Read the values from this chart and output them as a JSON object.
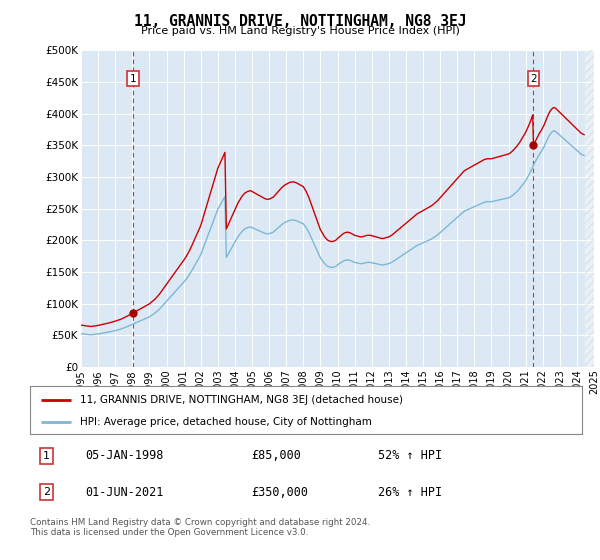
{
  "title": "11, GRANNIS DRIVE, NOTTINGHAM, NG8 3EJ",
  "subtitle": "Price paid vs. HM Land Registry's House Price Index (HPI)",
  "background_color": "#dce9f5",
  "plot_bg_color": "#dce9f5",
  "red_line_label": "11, GRANNIS DRIVE, NOTTINGHAM, NG8 3EJ (detached house)",
  "blue_line_label": "HPI: Average price, detached house, City of Nottingham",
  "footer": "Contains HM Land Registry data © Crown copyright and database right 2024.\nThis data is licensed under the Open Government Licence v3.0.",
  "annotation1_date": "05-JAN-1998",
  "annotation1_price": "£85,000",
  "annotation1_change": "52% ↑ HPI",
  "annotation2_date": "01-JUN-2021",
  "annotation2_price": "£350,000",
  "annotation2_change": "26% ↑ HPI",
  "ylim": [
    0,
    500000
  ],
  "ytick_labels": [
    "£0",
    "£50K",
    "£100K",
    "£150K",
    "£200K",
    "£250K",
    "£300K",
    "£350K",
    "£400K",
    "£450K",
    "£500K"
  ],
  "purchase1_date": 1998.04,
  "purchase1_price": 85000,
  "purchase2_date": 2021.46,
  "purchase2_price": 350000,
  "vline1_x": 1998.04,
  "vline2_x": 2021.46,
  "xmin": 1995,
  "xmax": 2025,
  "hpi_monthly": {
    "dates": [
      1995.0,
      1995.083,
      1995.167,
      1995.25,
      1995.333,
      1995.417,
      1995.5,
      1995.583,
      1995.667,
      1995.75,
      1995.833,
      1995.917,
      1996.0,
      1996.083,
      1996.167,
      1996.25,
      1996.333,
      1996.417,
      1996.5,
      1996.583,
      1996.667,
      1996.75,
      1996.833,
      1996.917,
      1997.0,
      1997.083,
      1997.167,
      1997.25,
      1997.333,
      1997.417,
      1997.5,
      1997.583,
      1997.667,
      1997.75,
      1997.833,
      1997.917,
      1998.0,
      1998.083,
      1998.167,
      1998.25,
      1998.333,
      1998.417,
      1998.5,
      1998.583,
      1998.667,
      1998.75,
      1998.833,
      1998.917,
      1999.0,
      1999.083,
      1999.167,
      1999.25,
      1999.333,
      1999.417,
      1999.5,
      1999.583,
      1999.667,
      1999.75,
      1999.833,
      1999.917,
      2000.0,
      2000.083,
      2000.167,
      2000.25,
      2000.333,
      2000.417,
      2000.5,
      2000.583,
      2000.667,
      2000.75,
      2000.833,
      2000.917,
      2001.0,
      2001.083,
      2001.167,
      2001.25,
      2001.333,
      2001.417,
      2001.5,
      2001.583,
      2001.667,
      2001.75,
      2001.833,
      2001.917,
      2002.0,
      2002.083,
      2002.167,
      2002.25,
      2002.333,
      2002.417,
      2002.5,
      2002.583,
      2002.667,
      2002.75,
      2002.833,
      2002.917,
      2003.0,
      2003.083,
      2003.167,
      2003.25,
      2003.333,
      2003.417,
      2003.5,
      2003.583,
      2003.667,
      2003.75,
      2003.833,
      2003.917,
      2004.0,
      2004.083,
      2004.167,
      2004.25,
      2004.333,
      2004.417,
      2004.5,
      2004.583,
      2004.667,
      2004.75,
      2004.833,
      2004.917,
      2005.0,
      2005.083,
      2005.167,
      2005.25,
      2005.333,
      2005.417,
      2005.5,
      2005.583,
      2005.667,
      2005.75,
      2005.833,
      2005.917,
      2006.0,
      2006.083,
      2006.167,
      2006.25,
      2006.333,
      2006.417,
      2006.5,
      2006.583,
      2006.667,
      2006.75,
      2006.833,
      2006.917,
      2007.0,
      2007.083,
      2007.167,
      2007.25,
      2007.333,
      2007.417,
      2007.5,
      2007.583,
      2007.667,
      2007.75,
      2007.833,
      2007.917,
      2008.0,
      2008.083,
      2008.167,
      2008.25,
      2008.333,
      2008.417,
      2008.5,
      2008.583,
      2008.667,
      2008.75,
      2008.833,
      2008.917,
      2009.0,
      2009.083,
      2009.167,
      2009.25,
      2009.333,
      2009.417,
      2009.5,
      2009.583,
      2009.667,
      2009.75,
      2009.833,
      2009.917,
      2010.0,
      2010.083,
      2010.167,
      2010.25,
      2010.333,
      2010.417,
      2010.5,
      2010.583,
      2010.667,
      2010.75,
      2010.833,
      2010.917,
      2011.0,
      2011.083,
      2011.167,
      2011.25,
      2011.333,
      2011.417,
      2011.5,
      2011.583,
      2011.667,
      2011.75,
      2011.833,
      2011.917,
      2012.0,
      2012.083,
      2012.167,
      2012.25,
      2012.333,
      2012.417,
      2012.5,
      2012.583,
      2012.667,
      2012.75,
      2012.833,
      2012.917,
      2013.0,
      2013.083,
      2013.167,
      2013.25,
      2013.333,
      2013.417,
      2013.5,
      2013.583,
      2013.667,
      2013.75,
      2013.833,
      2013.917,
      2014.0,
      2014.083,
      2014.167,
      2014.25,
      2014.333,
      2014.417,
      2014.5,
      2014.583,
      2014.667,
      2014.75,
      2014.833,
      2014.917,
      2015.0,
      2015.083,
      2015.167,
      2015.25,
      2015.333,
      2015.417,
      2015.5,
      2015.583,
      2015.667,
      2015.75,
      2015.833,
      2015.917,
      2016.0,
      2016.083,
      2016.167,
      2016.25,
      2016.333,
      2016.417,
      2016.5,
      2016.583,
      2016.667,
      2016.75,
      2016.833,
      2016.917,
      2017.0,
      2017.083,
      2017.167,
      2017.25,
      2017.333,
      2017.417,
      2017.5,
      2017.583,
      2017.667,
      2017.75,
      2017.833,
      2017.917,
      2018.0,
      2018.083,
      2018.167,
      2018.25,
      2018.333,
      2018.417,
      2018.5,
      2018.583,
      2018.667,
      2018.75,
      2018.833,
      2018.917,
      2019.0,
      2019.083,
      2019.167,
      2019.25,
      2019.333,
      2019.417,
      2019.5,
      2019.583,
      2019.667,
      2019.75,
      2019.833,
      2019.917,
      2020.0,
      2020.083,
      2020.167,
      2020.25,
      2020.333,
      2020.417,
      2020.5,
      2020.583,
      2020.667,
      2020.75,
      2020.833,
      2020.917,
      2021.0,
      2021.083,
      2021.167,
      2021.25,
      2021.333,
      2021.417,
      2021.5,
      2021.583,
      2021.667,
      2021.75,
      2021.833,
      2021.917,
      2022.0,
      2022.083,
      2022.167,
      2022.25,
      2022.333,
      2022.417,
      2022.5,
      2022.583,
      2022.667,
      2022.75,
      2022.833,
      2022.917,
      2023.0,
      2023.083,
      2023.167,
      2023.25,
      2023.333,
      2023.417,
      2023.5,
      2023.583,
      2023.667,
      2023.75,
      2023.833,
      2023.917,
      2024.0,
      2024.083,
      2024.167,
      2024.25,
      2024.333,
      2024.417
    ],
    "values": [
      52000,
      52200,
      51800,
      51500,
      51200,
      51000,
      50800,
      50600,
      50800,
      51000,
      51300,
      51600,
      52000,
      52300,
      52700,
      53000,
      53400,
      53800,
      54200,
      54700,
      55200,
      55700,
      56200,
      56700,
      57200,
      57800,
      58400,
      59000,
      59700,
      60500,
      61300,
      62200,
      63100,
      64000,
      65000,
      66000,
      67000,
      68000,
      69000,
      70000,
      71000,
      72000,
      73000,
      74000,
      75000,
      76000,
      77000,
      78000,
      79000,
      80500,
      82000,
      83500,
      85000,
      87000,
      89000,
      91000,
      93500,
      96000,
      98500,
      101000,
      103500,
      106000,
      108500,
      111000,
      113500,
      116000,
      118500,
      121000,
      123500,
      126000,
      128500,
      131000,
      133500,
      136000,
      139000,
      142000,
      145500,
      149000,
      153000,
      157000,
      161000,
      165000,
      169000,
      173000,
      177000,
      183000,
      189000,
      195000,
      201000,
      207000,
      213000,
      219000,
      225000,
      231000,
      237000,
      243000,
      249000,
      253000,
      257000,
      261000,
      265000,
      269000,
      173000,
      177000,
      181000,
      185000,
      189000,
      193000,
      197000,
      201000,
      205000,
      208000,
      211000,
      214000,
      216000,
      218000,
      219000,
      220000,
      220500,
      221000,
      220000,
      219000,
      218000,
      217000,
      216000,
      215000,
      214000,
      213000,
      212000,
      211000,
      210500,
      210000,
      210500,
      211000,
      212000,
      213000,
      215000,
      217000,
      219000,
      221000,
      223000,
      225000,
      226500,
      228000,
      229000,
      230000,
      231000,
      231500,
      232000,
      232000,
      231500,
      231000,
      230000,
      229000,
      228000,
      227000,
      226000,
      223000,
      220000,
      216000,
      212000,
      207000,
      202000,
      197000,
      192000,
      187000,
      182000,
      177000,
      172000,
      169000,
      166000,
      163000,
      161000,
      159000,
      158000,
      157500,
      157000,
      157500,
      158000,
      159000,
      161000,
      162500,
      164000,
      165500,
      167000,
      168000,
      168500,
      169000,
      168500,
      168000,
      167000,
      166000,
      165000,
      164500,
      164000,
      163500,
      163000,
      163000,
      163500,
      164000,
      164500,
      165000,
      165000,
      165000,
      164500,
      164000,
      163500,
      163000,
      162500,
      162000,
      161500,
      161000,
      161000,
      161500,
      162000,
      162500,
      163000,
      164000,
      165000,
      166500,
      168000,
      169500,
      171000,
      172500,
      174000,
      175500,
      177000,
      178500,
      180000,
      181500,
      183000,
      184500,
      186000,
      187500,
      189000,
      190500,
      192000,
      193000,
      194000,
      195000,
      196000,
      197000,
      198000,
      199000,
      200000,
      201000,
      202000,
      203500,
      205000,
      206500,
      208000,
      210000,
      212000,
      214000,
      216000,
      218000,
      220000,
      222000,
      224000,
      226000,
      228000,
      230000,
      232000,
      234000,
      236000,
      238000,
      240000,
      242000,
      244000,
      246000,
      247000,
      248000,
      249000,
      250000,
      251000,
      252000,
      253000,
      254000,
      255000,
      256000,
      257000,
      258000,
      259000,
      260000,
      260500,
      261000,
      261000,
      261000,
      261000,
      261500,
      262000,
      262500,
      263000,
      263500,
      264000,
      264500,
      265000,
      265500,
      266000,
      266500,
      267000,
      268000,
      269500,
      271000,
      273000,
      275000,
      277000,
      279500,
      282000,
      285000,
      288000,
      291000,
      294000,
      298000,
      302000,
      306000,
      311000,
      316000,
      321000,
      325000,
      329000,
      333000,
      337000,
      340000,
      344000,
      348000,
      353000,
      358000,
      363000,
      367000,
      370000,
      372000,
      373000,
      372000,
      370000,
      368000,
      366000,
      364000,
      362000,
      360000,
      358000,
      356000,
      354000,
      352000,
      350000,
      348000,
      346000,
      344000,
      342000,
      340000,
      338000,
      336000,
      335000,
      334000
    ]
  }
}
